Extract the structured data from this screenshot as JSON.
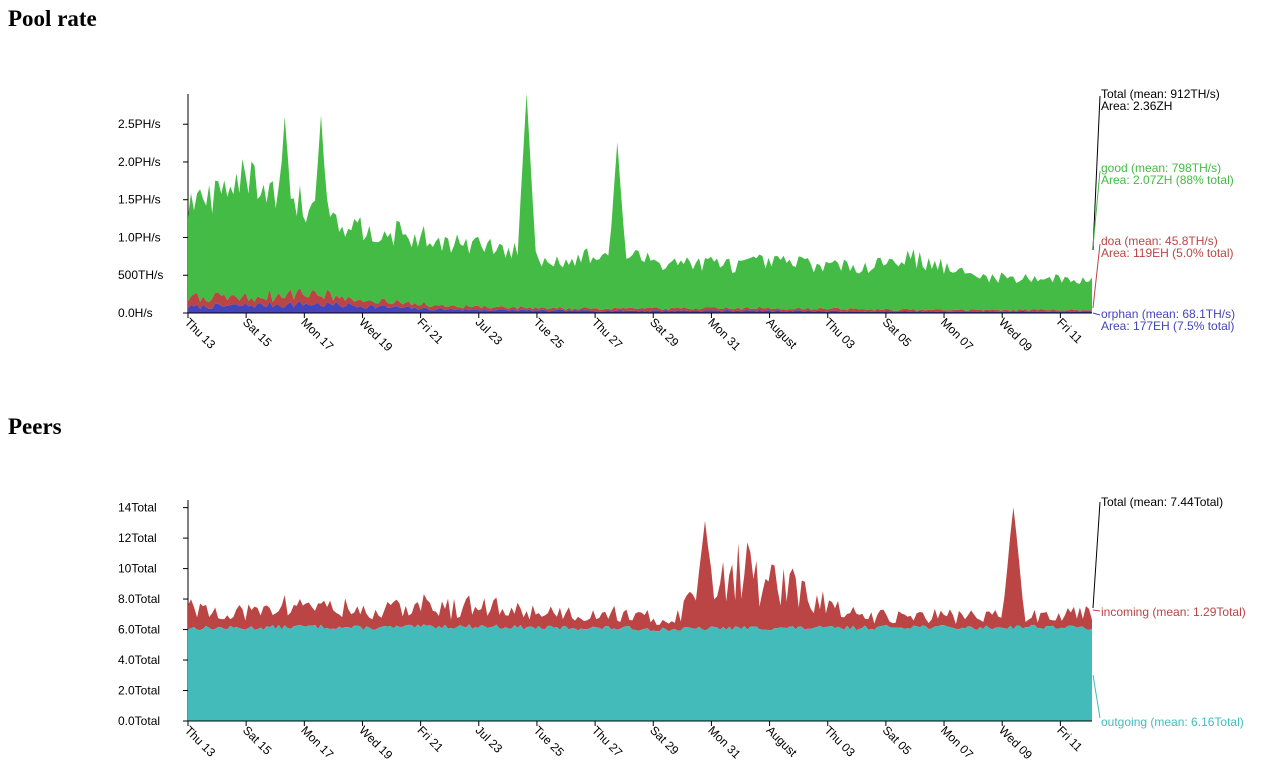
{
  "pool": {
    "title": "Pool rate",
    "y_ticks": [
      "0.0H/s",
      "500TH/s",
      "1.0PH/s",
      "1.5PH/s",
      "2.0PH/s",
      "2.5PH/s"
    ],
    "x_ticks": [
      "Thu 13",
      "Sat 15",
      "Mon 17",
      "Wed 19",
      "Fri 21",
      "Jul 23",
      "Tue 25",
      "Thu 27",
      "Sat 29",
      "Mon 31",
      "August",
      "Thu 03",
      "Sat 05",
      "Mon 07",
      "Wed 09",
      "Fri 11"
    ],
    "legend": {
      "total_line1": "Total (mean: 912TH/s)",
      "total_line2": "Area: 2.36ZH",
      "good_line1": "good (mean: 798TH/s)",
      "good_line2": "Area: 2.07ZH (88% total)",
      "doa_line1": "doa (mean: 45.8TH/s)",
      "doa_line2": "Area: 119EH (5.0% total)",
      "orphan_line1": "orphan (mean: 68.1TH/s)",
      "orphan_line2": "Area: 177EH (7.5% total)"
    },
    "colors": {
      "good": "#44bb44",
      "doa": "#bb4444",
      "orphan": "#4444bb",
      "total": "#000000"
    }
  },
  "peers": {
    "title": "Peers",
    "y_ticks": [
      "0.0Total",
      "2.0Total",
      "4.0Total",
      "6.0Total",
      "8.0Total",
      "10Total",
      "12Total",
      "14Total"
    ],
    "x_ticks": [
      "Thu 13",
      "Sat 15",
      "Mon 17",
      "Wed 19",
      "Fri 21",
      "Jul 23",
      "Tue 25",
      "Thu 27",
      "Sat 29",
      "Mon 31",
      "August",
      "Thu 03",
      "Sat 05",
      "Mon 07",
      "Wed 09",
      "Fri 11"
    ],
    "legend": {
      "total": "Total (mean: 7.44Total)",
      "incoming": "incoming (mean: 1.29Total)",
      "outgoing": "outgoing (mean: 6.16Total)"
    },
    "colors": {
      "incoming": "#bb4444",
      "outgoing": "#44bbbb",
      "total": "#000000"
    }
  },
  "chart_data": [
    {
      "type": "area",
      "title": "Pool rate",
      "x": [
        "Thu 13",
        "Sat 15",
        "Mon 17",
        "Wed 19",
        "Fri 21",
        "Jul 23",
        "Tue 25",
        "Thu 27",
        "Sat 29",
        "Mon 31",
        "August",
        "Thu 03",
        "Sat 05",
        "Mon 07",
        "Wed 09",
        "Fri 11"
      ],
      "ylim": [
        0,
        2.9
      ],
      "y_unit": "PH/s",
      "stacked": true,
      "series": [
        {
          "name": "orphan",
          "values": [
            0.08,
            0.1,
            0.12,
            0.09,
            0.05,
            0.04,
            0.03,
            0.03,
            0.03,
            0.03,
            0.03,
            0.02,
            0.02,
            0.02,
            0.02,
            0.02
          ]
        },
        {
          "name": "doa",
          "values": [
            0.12,
            0.1,
            0.15,
            0.07,
            0.05,
            0.04,
            0.03,
            0.03,
            0.03,
            0.03,
            0.03,
            0.03,
            0.02,
            0.02,
            0.02,
            0.02
          ]
        },
        {
          "name": "good",
          "values": [
            1.2,
            1.6,
            1.1,
            0.95,
            0.85,
            0.8,
            0.62,
            0.72,
            0.62,
            0.58,
            0.62,
            0.55,
            0.7,
            0.45,
            0.42,
            0.4
          ]
        }
      ],
      "spikes": [
        {
          "name": "good",
          "x_index": 5.6,
          "value": 2.85
        },
        {
          "name": "good",
          "x_index": 7.1,
          "value": 2.2
        },
        {
          "name": "good",
          "x_index": 1.6,
          "value": 2.4
        },
        {
          "name": "good",
          "x_index": 2.2,
          "value": 2.4
        }
      ]
    },
    {
      "type": "area",
      "title": "Peers",
      "x": [
        "Thu 13",
        "Sat 15",
        "Mon 17",
        "Wed 19",
        "Fri 21",
        "Jul 23",
        "Tue 25",
        "Thu 27",
        "Sat 29",
        "Mon 31",
        "August",
        "Thu 03",
        "Sat 05",
        "Mon 07",
        "Wed 09",
        "Fri 11"
      ],
      "ylim": [
        0,
        14.5
      ],
      "y_unit": "Total",
      "stacked": true,
      "series": [
        {
          "name": "outgoing",
          "values": [
            6.1,
            6.1,
            6.2,
            6.1,
            6.2,
            6.2,
            6.1,
            6.1,
            6.0,
            6.1,
            6.1,
            6.1,
            6.2,
            6.1,
            6.2,
            6.1
          ]
        },
        {
          "name": "incoming",
          "values": [
            1.2,
            1.0,
            1.5,
            1.0,
            1.3,
            1.2,
            1.0,
            1.0,
            0.6,
            4.0,
            2.5,
            0.8,
            0.7,
            0.8,
            0.7,
            1.2
          ]
        }
      ]
    }
  ]
}
